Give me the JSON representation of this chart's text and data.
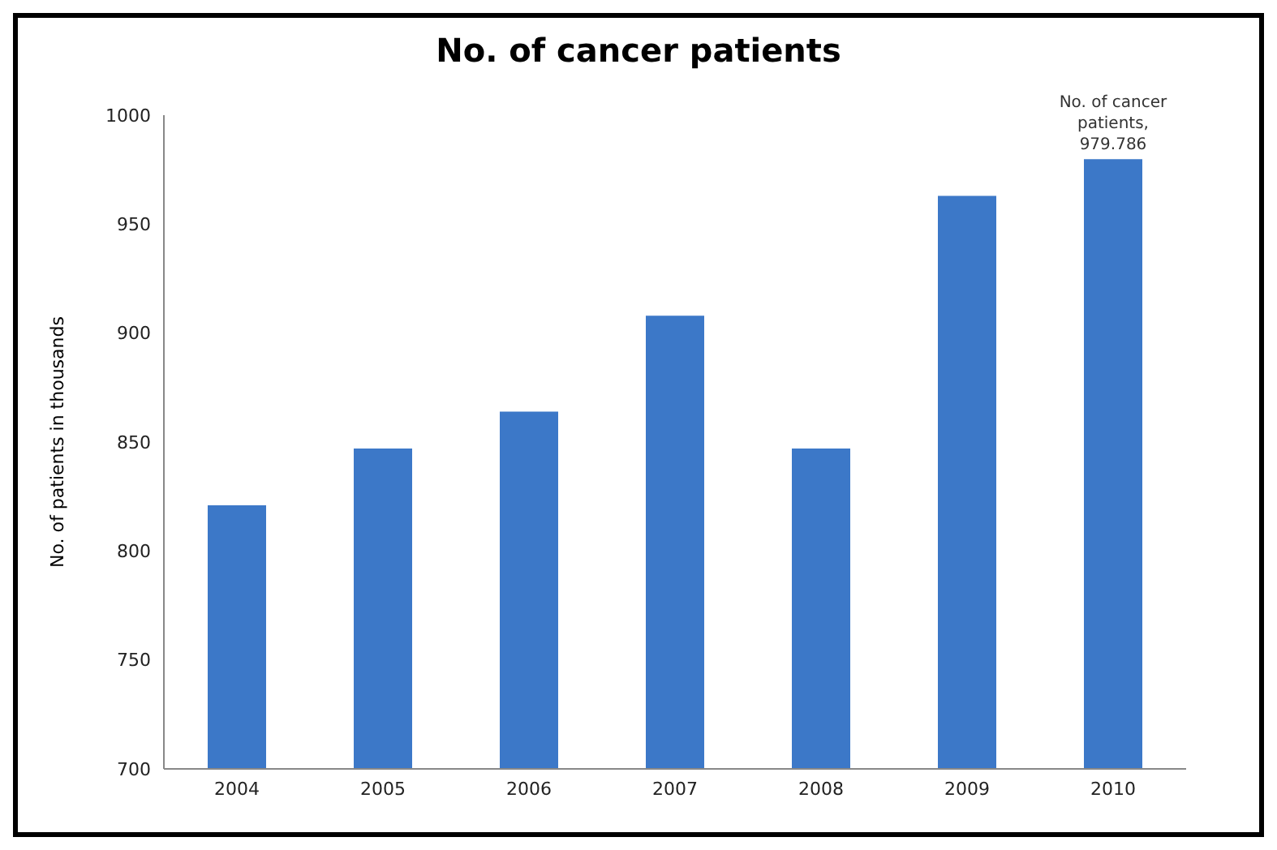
{
  "chart_data": {
    "type": "bar",
    "title": "No. of cancer patients",
    "ylabel": "No. of patients in thousands",
    "categories": [
      "2004",
      "2005",
      "2006",
      "2007",
      "2008",
      "2009",
      "2010"
    ],
    "values": [
      821,
      847,
      864,
      908,
      847,
      963,
      979.786
    ],
    "color": "#3c78c8",
    "ylim": [
      700,
      1000
    ],
    "yticks": [
      700,
      750,
      800,
      850,
      900,
      950,
      1000
    ],
    "grid": false,
    "annotations": [
      {
        "text": "No. of cancer patients, 979.786",
        "x": "2010",
        "y": 979.786
      }
    ]
  }
}
